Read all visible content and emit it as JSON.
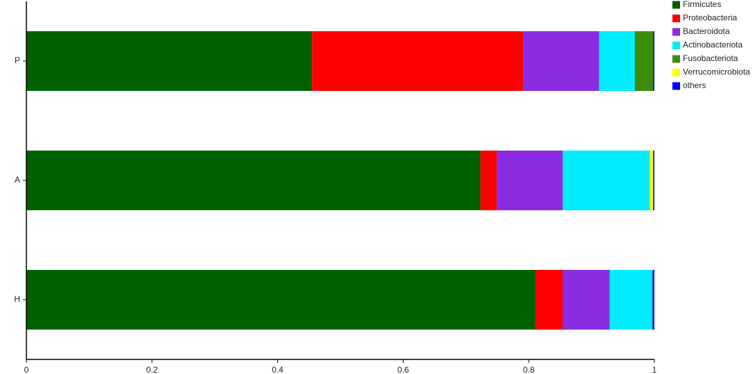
{
  "chart_data": {
    "type": "stacked-barh",
    "categories": [
      "P",
      "A",
      "H"
    ],
    "series": [
      {
        "name": "Firmicutes",
        "color": "#006100",
        "values": [
          0.455,
          0.723,
          0.811
        ]
      },
      {
        "name": "Proteobacteria",
        "color": "#ff0000",
        "values": [
          0.336,
          0.026,
          0.043
        ]
      },
      {
        "name": "Bacteroidota",
        "color": "#8a2be2",
        "values": [
          0.121,
          0.105,
          0.075
        ]
      },
      {
        "name": "Actinobacteriota",
        "color": "#00eeff",
        "values": [
          0.057,
          0.139,
          0.068
        ]
      },
      {
        "name": "Fusobacteriota",
        "color": "#3c8c0a",
        "values": [
          0.029,
          0,
          0
        ]
      },
      {
        "name": "Verrucomicrobiota",
        "color": "#ffff00",
        "values": [
          0,
          0.005,
          0
        ]
      },
      {
        "name": "others",
        "color": "#0000ff",
        "values": [
          0.002,
          0.002,
          0.003
        ]
      }
    ],
    "xlim": [
      0,
      1
    ],
    "xticks": [
      0,
      0.2,
      0.4,
      0.6,
      0.8,
      1
    ],
    "legend": "top-right"
  }
}
